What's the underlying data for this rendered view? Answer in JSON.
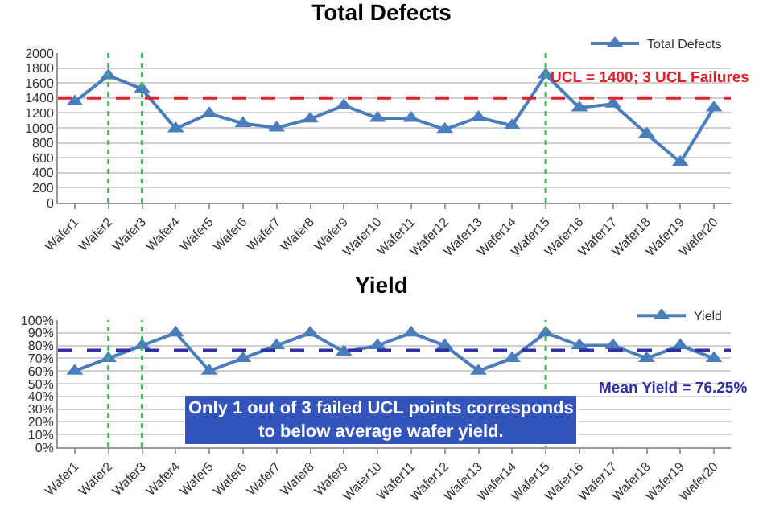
{
  "chart_data": [
    {
      "type": "line",
      "title": "Total Defects",
      "categories": [
        "Wafer1",
        "Wafer2",
        "Wafer3",
        "Wafer4",
        "Wafer5",
        "Wafer6",
        "Wafer7",
        "Wafer8",
        "Wafer9",
        "Wafer10",
        "Wafer11",
        "Wafer12",
        "Wafer13",
        "Wafer14",
        "Wafer15",
        "Wafer16",
        "Wafer17",
        "Wafer18",
        "Wafer19",
        "Wafer20"
      ],
      "series": [
        {
          "name": "Total Defects",
          "color": "#4a7ebb",
          "values": [
            1350,
            1700,
            1520,
            990,
            1190,
            1060,
            1000,
            1120,
            1300,
            1130,
            1130,
            980,
            1140,
            1030,
            1710,
            1270,
            1320,
            920,
            540,
            1270
          ]
        }
      ],
      "ylim": [
        0,
        2000
      ],
      "yticks": [
        0,
        200,
        400,
        600,
        800,
        1000,
        1200,
        1400,
        1600,
        1800,
        2000
      ],
      "grid": "y",
      "legend": "top right",
      "marker": "triangle",
      "line_style": "solid",
      "ref_lines": [
        {
          "axis": "y",
          "value": 1400,
          "label": "UCL = 1400; 3 UCL Failures",
          "color": "#e0202a",
          "line_style": "dashed"
        },
        {
          "axis": "x",
          "value": "Wafer2",
          "color": "#33bb55",
          "line_style": "dotted"
        },
        {
          "axis": "x",
          "value": "Wafer3",
          "color": "#33bb55",
          "line_style": "dotted"
        },
        {
          "axis": "x",
          "value": "Wafer15",
          "color": "#33bb55",
          "line_style": "dotted"
        }
      ]
    },
    {
      "type": "line",
      "title": "Yield",
      "categories": [
        "Wafer1",
        "Wafer2",
        "Wafer3",
        "Wafer4",
        "Wafer5",
        "Wafer6",
        "Wafer7",
        "Wafer8",
        "Wafer9",
        "Wafer10",
        "Wafer11",
        "Wafer12",
        "Wafer13",
        "Wafer14",
        "Wafer15",
        "Wafer16",
        "Wafer17",
        "Wafer18",
        "Wafer19",
        "Wafer20"
      ],
      "series": [
        {
          "name": "Yield",
          "color": "#4a7ebb",
          "values": [
            60,
            70,
            80,
            90,
            60,
            70,
            80,
            90,
            75,
            80,
            90,
            80,
            60,
            70,
            90,
            80,
            80,
            70,
            80,
            70
          ]
        }
      ],
      "ylim": [
        0,
        100
      ],
      "yticks": [
        {
          "value": 0,
          "label": "0%"
        },
        {
          "value": 10,
          "label": "10%"
        },
        {
          "value": 20,
          "label": "20%"
        },
        {
          "value": 30,
          "label": "30%"
        },
        {
          "value": 40,
          "label": "40%"
        },
        {
          "value": 50,
          "label": "50%"
        },
        {
          "value": 60,
          "label": "60%"
        },
        {
          "value": 70,
          "label": "70%"
        },
        {
          "value": 80,
          "label": "80%"
        },
        {
          "value": 90,
          "label": "90%"
        },
        {
          "value": 100,
          "label": "100%"
        }
      ],
      "grid": "y",
      "legend": "top right",
      "marker": "triangle",
      "line_style": "solid",
      "ref_lines": [
        {
          "axis": "y",
          "value": 76.25,
          "label": "Mean Yield = 76.25%",
          "color": "#3030a0",
          "line_style": "dashed"
        },
        {
          "axis": "x",
          "value": "Wafer2",
          "color": "#33bb55",
          "line_style": "dotted"
        },
        {
          "axis": "x",
          "value": "Wafer3",
          "color": "#33bb55",
          "line_style": "dotted"
        },
        {
          "axis": "x",
          "value": "Wafer15",
          "color": "#33bb55",
          "line_style": "dotted"
        }
      ],
      "annotations": [
        "Only 1 out of 3 failed UCL points corresponds to below average wafer yield."
      ]
    }
  ]
}
